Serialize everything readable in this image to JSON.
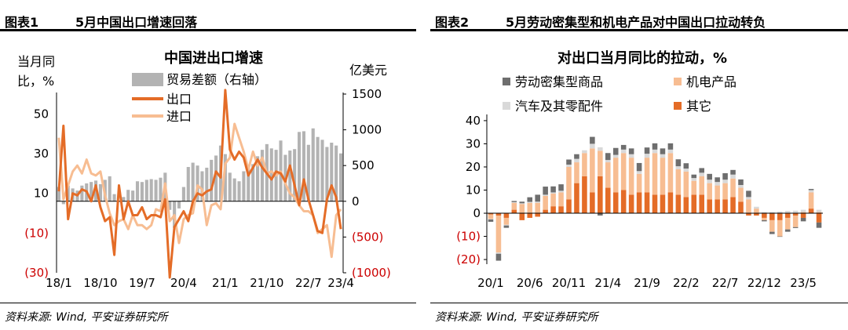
{
  "figure1": {
    "fig_label": "图表1",
    "heading": "5月中国出口增速回落",
    "source": "资料来源: Wind, 平安证券研究所",
    "chart_data": {
      "type": "line",
      "title": "中国进出口增速",
      "ylabel_left": "当月同比，%",
      "ylabel_left_lines": [
        "当月同",
        "比，%"
      ],
      "ylabel_right": "亿美元",
      "left_ticks": [
        {
          "v": 50,
          "label": "50"
        },
        {
          "v": 30,
          "label": "30"
        },
        {
          "v": 10,
          "label": "10"
        },
        {
          "v": -10,
          "label": "(10)"
        },
        {
          "v": -30,
          "label": "(30)"
        }
      ],
      "right_ticks": [
        {
          "v": 1500,
          "label": "1500"
        },
        {
          "v": 1000,
          "label": "1000"
        },
        {
          "v": 500,
          "label": "500"
        },
        {
          "v": 0,
          "label": "0"
        },
        {
          "v": -500,
          "label": "(500)"
        },
        {
          "v": -1000,
          "label": "(1000)"
        }
      ],
      "x_tick_labels": [
        "18/1",
        "18/10",
        "19/7",
        "20/4",
        "21/1",
        "21/10",
        "22/7",
        "23/4"
      ],
      "ylim_left": [
        -30,
        60
      ],
      "ylim_right": [
        -1000,
        1500
      ],
      "colors": {
        "trade_balance": "#b3b3b3",
        "export": "#e46c27",
        "import": "#f7bd92",
        "neg_label": "#cc0000"
      },
      "series": [
        {
          "name": "贸易差额（右轴）",
          "type": "bar",
          "axis": "right",
          "values": [
            200,
            -40,
            220,
            180,
            150,
            220,
            250,
            270,
            290,
            240,
            300,
            350,
            100,
            -10,
            60,
            160,
            150,
            280,
            270,
            300,
            310,
            300,
            330,
            400,
            -120,
            -370,
            -100,
            200,
            480,
            540,
            500,
            420,
            470,
            580,
            640,
            780,
            660,
            400,
            320,
            280,
            420,
            510,
            520,
            630,
            720,
            800,
            740,
            720,
            850,
            650,
            710,
            730,
            970,
            980,
            790,
            1020,
            900,
            860,
            760,
            820,
            780,
            670
          ]
        },
        {
          "name": "出口",
          "type": "line",
          "axis": "left",
          "values": [
            11,
            44,
            -3,
            10,
            9,
            12,
            11,
            6,
            14,
            3,
            -4,
            -2,
            -21,
            14,
            -3,
            6,
            -1,
            -1,
            3,
            -3,
            -1,
            -1,
            -2,
            7,
            -40,
            -7,
            -3,
            1,
            -4,
            6,
            10,
            9,
            11,
            12,
            21,
            18,
            62,
            32,
            27,
            31,
            28,
            19,
            23,
            27,
            23,
            20,
            17,
            21,
            20,
            16,
            24,
            14,
            4,
            17,
            7,
            -1,
            -9,
            -10,
            7,
            14,
            8,
            -8
          ]
        },
        {
          "name": "进口",
          "type": "line",
          "axis": "left",
          "values": [
            38,
            7,
            14,
            21,
            24,
            20,
            27,
            20,
            19,
            21,
            9,
            0,
            -6,
            -4,
            -3,
            -8,
            -1,
            -6,
            -6,
            -8,
            -6,
            2,
            1,
            15,
            -4,
            -1,
            -15,
            -3,
            -1,
            0,
            14,
            12,
            -6,
            4,
            5,
            2,
            25,
            28,
            45,
            38,
            31,
            22,
            31,
            24,
            28,
            20,
            21,
            19,
            21,
            15,
            10,
            8,
            4,
            1,
            1,
            -1,
            -10,
            -8,
            -6,
            -22,
            -1,
            2
          ]
        }
      ],
      "n_months": 62
    }
  },
  "figure2": {
    "fig_label": "图表2",
    "heading": "5月劳动密集型和机电产品对中国出口拉动转负",
    "source": "资料来源: Wind, 平安证券研究所",
    "chart_data": {
      "type": "bar",
      "title": "对出口当月同比的拉动，%",
      "x_tick_labels": [
        "20/1",
        "20/6",
        "20/11",
        "21/4",
        "21/9",
        "22/2",
        "22/7",
        "22/12",
        "23/5"
      ],
      "y_ticks": [
        {
          "v": 40,
          "label": "40"
        },
        {
          "v": 30,
          "label": "30"
        },
        {
          "v": 20,
          "label": "20"
        },
        {
          "v": 10,
          "label": "10"
        },
        {
          "v": 0,
          "label": "0"
        },
        {
          "v": -10,
          "label": "(10)"
        },
        {
          "v": -20,
          "label": "(20)"
        }
      ],
      "ylim": [
        -22,
        42
      ],
      "stacked": true,
      "colors": {
        "labor": "#6e6e6e",
        "mech": "#f7bd92",
        "auto": "#d9d9d9",
        "other": "#e46c27",
        "neg_label": "#cc0000"
      },
      "series": [
        {
          "name": "劳动密集型商品",
          "values": [
            -1,
            -3,
            -1,
            0.5,
            0.7,
            2,
            3,
            3.5,
            2.6,
            2.8,
            2.2,
            2,
            0,
            3,
            -1,
            3,
            3,
            2,
            2.5,
            3.5,
            2.7,
            2.7,
            2.5,
            2.7,
            3,
            2.3,
            1.5,
            2,
            2.5,
            2,
            2.8,
            2,
            2.4,
            2.7,
            0,
            -0.5,
            -1,
            -0.2,
            -1,
            -0.4,
            -1.5,
            0.5,
            -2.3
          ]
        },
        {
          "name": "机电产品",
          "values": [
            -2,
            -16,
            -3,
            3,
            4,
            4.5,
            4.5,
            6,
            5.5,
            6,
            14,
            9,
            10,
            19,
            11,
            11,
            15,
            16,
            16,
            8,
            15,
            18,
            16,
            17,
            11,
            11,
            6,
            8,
            7,
            6,
            7,
            8,
            6,
            6,
            2,
            -1,
            -5,
            -7,
            -5,
            -5,
            0.5,
            7,
            0.5
          ]
        },
        {
          "name": "汽车及其零配件",
          "values": [
            -0.2,
            -0.5,
            -0.3,
            0.3,
            0.3,
            0.4,
            0.5,
            0.5,
            0.5,
            0.7,
            1,
            1.5,
            1.2,
            2,
            1.5,
            1,
            1.2,
            1.5,
            1.5,
            1.2,
            1.7,
            1.5,
            1.5,
            1.5,
            1.3,
            1.3,
            1.2,
            1.5,
            1.5,
            1.5,
            1.5,
            1.7,
            1.2,
            1,
            0.8,
            0.5,
            0.5,
            0.7,
            1,
            1.1,
            1,
            1,
            1
          ]
        },
        {
          "name": "其它",
          "values": [
            -0.5,
            -1,
            -2,
            1.5,
            -3,
            -2,
            -1.5,
            1.5,
            3,
            3,
            6,
            13,
            16,
            9,
            16,
            11,
            9,
            10,
            8,
            9,
            9,
            8,
            8,
            9,
            8,
            7,
            8,
            8,
            6,
            6,
            6,
            7,
            5,
            -1,
            -1,
            -2,
            -3,
            -3,
            -2,
            -1,
            -2,
            2,
            -4
          ]
        }
      ],
      "n_months": 43
    }
  }
}
